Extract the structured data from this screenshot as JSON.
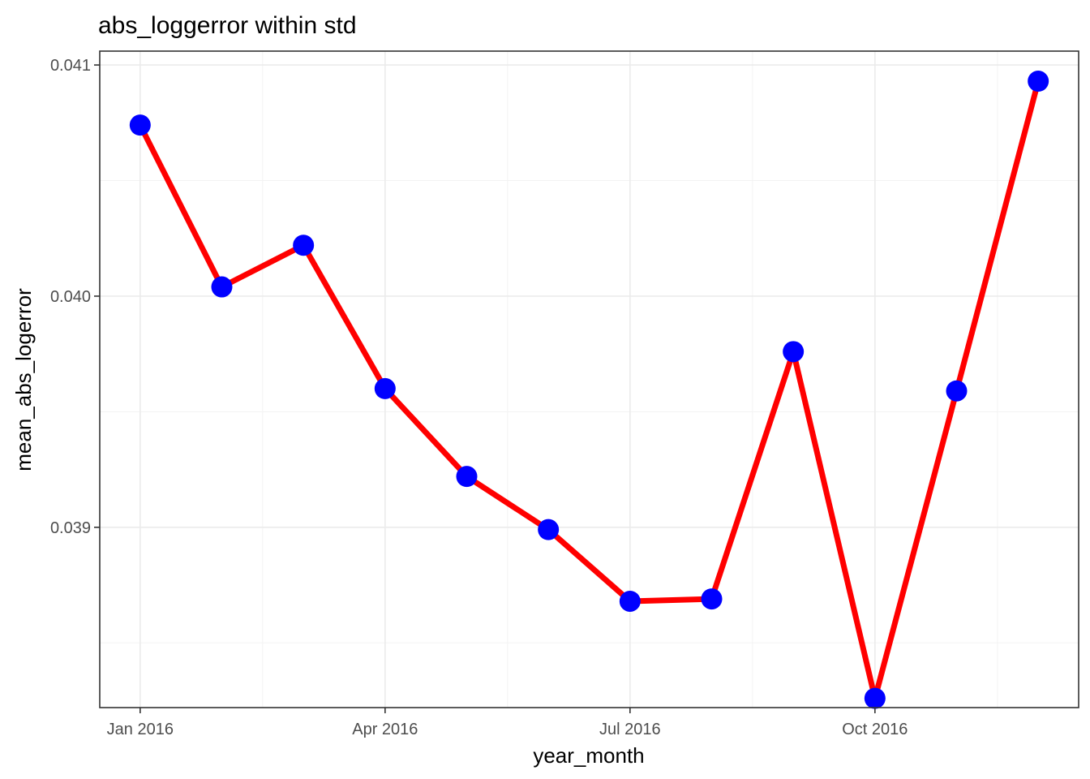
{
  "chart_data": {
    "type": "line",
    "title": "abs_loggerror within std",
    "xlabel": "year_month",
    "ylabel": "mean_abs_logerror",
    "x": [
      "2016-01",
      "2016-02",
      "2016-03",
      "2016-04",
      "2016-05",
      "2016-06",
      "2016-07",
      "2016-08",
      "2016-09",
      "2016-10",
      "2016-11",
      "2016-12"
    ],
    "x_tick_labels": [
      "Jan 2016",
      "Apr 2016",
      "Jul 2016",
      "Oct 2016"
    ],
    "y_ticks": [
      "0.039",
      "0.040",
      "0.041"
    ],
    "ylim": [
      0.03822,
      0.04106
    ],
    "series": [
      {
        "values": [
          0.04074,
          0.04004,
          0.04022,
          0.0396,
          0.03922,
          0.03899,
          0.03868,
          0.03869,
          0.03976,
          0.03826,
          0.03959,
          0.04093
        ],
        "line_color": "#ff0000",
        "point_color": "#0000ff"
      }
    ],
    "grid": true,
    "theme": "bw"
  }
}
